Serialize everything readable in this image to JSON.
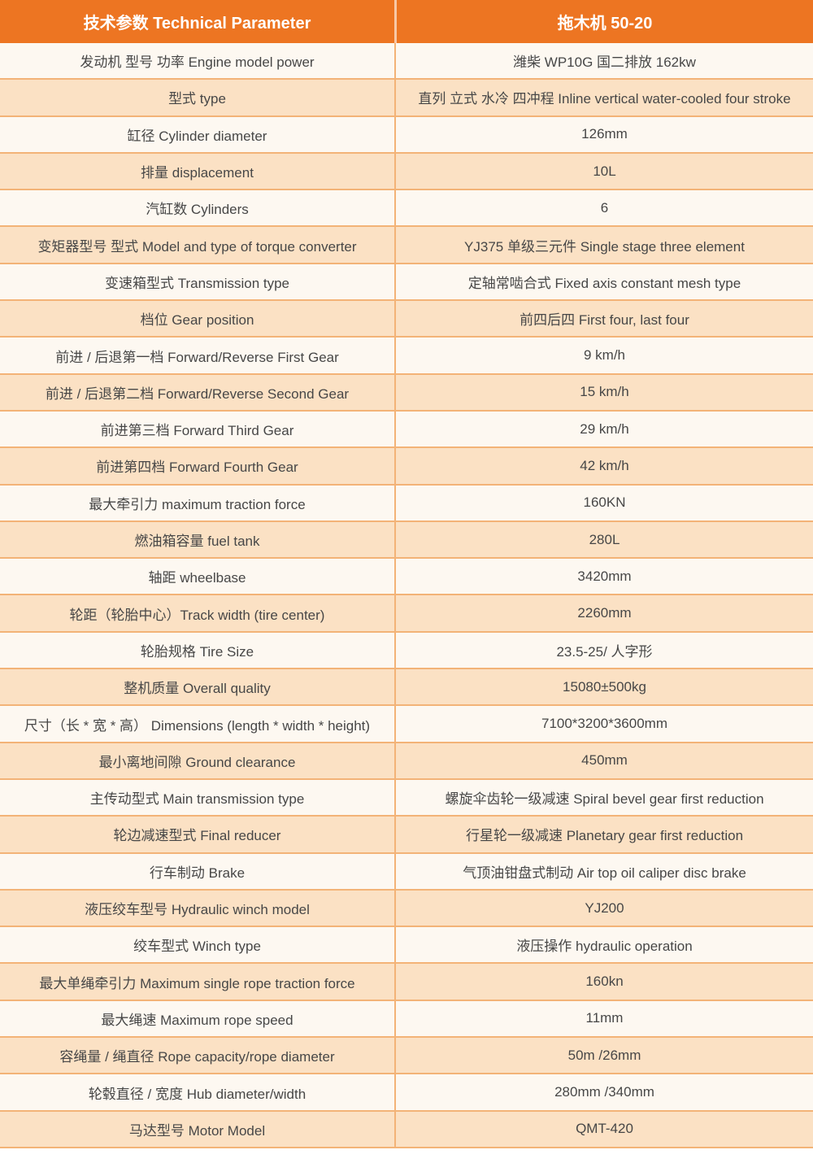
{
  "header": {
    "param_col": "技术参数 Technical Parameter",
    "value_col": "拖木机 50-20"
  },
  "colors": {
    "header_bg": "#ED7522",
    "header_text": "#FFFFFF",
    "row_light": "#FDF8F1",
    "row_peach": "#FBE1C4",
    "border": "#F3B377",
    "text": "#474747"
  },
  "rows": [
    {
      "label": "发动机 型号 功率 Engine model power",
      "value": "潍柴 WP10G 国二排放 162kw"
    },
    {
      "label": "型式 type",
      "value": "直列 立式 水冷 四冲程 Inline vertical water-cooled four stroke"
    },
    {
      "label": "缸径 Cylinder diameter",
      "value": "126mm"
    },
    {
      "label": "排量 displacement",
      "value": "10L"
    },
    {
      "label": "汽缸数 Cylinders",
      "value": "6"
    },
    {
      "label": "变矩器型号 型式 Model and type of torque converter",
      "value": "YJ375 单级三元件 Single stage three element"
    },
    {
      "label": "变速箱型式 Transmission type",
      "value": "定轴常啮合式 Fixed axis constant mesh type"
    },
    {
      "label": "档位 Gear position",
      "value": "前四后四 First four, last four"
    },
    {
      "label": "前进 / 后退第一档 Forward/Reverse First Gear",
      "value": "9 km/h"
    },
    {
      "label": "前进 / 后退第二档 Forward/Reverse Second Gear",
      "value": "15 km/h"
    },
    {
      "label": "前进第三档 Forward Third Gear",
      "value": "29 km/h"
    },
    {
      "label": "前进第四档 Forward Fourth Gear",
      "value": "42 km/h"
    },
    {
      "label": "最大牵引力 maximum traction force",
      "value": "160KN"
    },
    {
      "label": "燃油箱容量 fuel tank",
      "value": "280L"
    },
    {
      "label": "轴距 wheelbase",
      "value": "3420mm"
    },
    {
      "label": "轮距（轮胎中心）Track width (tire center)",
      "value": "2260mm"
    },
    {
      "label": "轮胎规格 Tire Size",
      "value": "23.5-25/ 人字形"
    },
    {
      "label": "整机质量 Overall quality",
      "value": "15080±500kg"
    },
    {
      "label": "尺寸（长 * 宽 * 高） Dimensions (length * width * height)",
      "value": "7100*3200*3600mm"
    },
    {
      "label": "最小离地间隙 Ground clearance",
      "value": "450mm"
    },
    {
      "label": "主传动型式 Main transmission type",
      "value": "螺旋伞齿轮一级减速 Spiral bevel gear first reduction"
    },
    {
      "label": "轮边减速型式 Final reducer",
      "value": "行星轮一级减速 Planetary gear first reduction"
    },
    {
      "label": "行车制动 Brake",
      "value": "气顶油钳盘式制动 Air top oil caliper disc brake"
    },
    {
      "label": "液压绞车型号 Hydraulic winch model",
      "value": "YJ200"
    },
    {
      "label": "绞车型式 Winch type",
      "value": "液压操作 hydraulic operation"
    },
    {
      "label": "最大单绳牵引力 Maximum single rope traction force",
      "value": "160kn"
    },
    {
      "label": "最大绳速 Maximum rope speed",
      "value": "11mm"
    },
    {
      "label": "容绳量 / 绳直径 Rope capacity/rope diameter",
      "value": "50m /26mm"
    },
    {
      "label": "轮毂直径 / 宽度 Hub diameter/width",
      "value": "280mm /340mm"
    },
    {
      "label": "马达型号 Motor Model",
      "value": "QMT-420"
    }
  ]
}
